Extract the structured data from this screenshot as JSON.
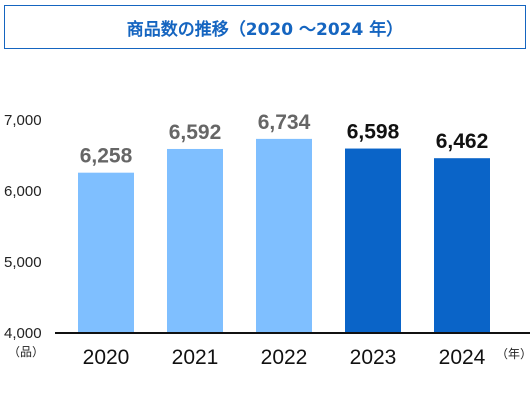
{
  "chart_data": {
    "type": "bar",
    "title": "商品数の推移（2020 ～2024 年）",
    "categories": [
      "2020",
      "2021",
      "2022",
      "2023",
      "2024"
    ],
    "values": [
      6258,
      6592,
      6734,
      6598,
      6462
    ],
    "value_labels": [
      "6,258",
      "6,592",
      "6,734",
      "6,598",
      "6,462"
    ],
    "ylim": [
      4000,
      7000
    ],
    "yticks": [
      4000,
      5000,
      6000,
      7000
    ],
    "ytick_labels": [
      "4,000",
      "5,000",
      "6,000",
      "7,000"
    ],
    "y_unit": "（品）",
    "x_unit": "（年）",
    "grid": false,
    "bar_colors": [
      "#7fbfff",
      "#7fbfff",
      "#7fbfff",
      "#0a64c8",
      "#0a64c8"
    ],
    "label_colors": [
      "#666666",
      "#666666",
      "#666666",
      "#111111",
      "#111111"
    ]
  }
}
